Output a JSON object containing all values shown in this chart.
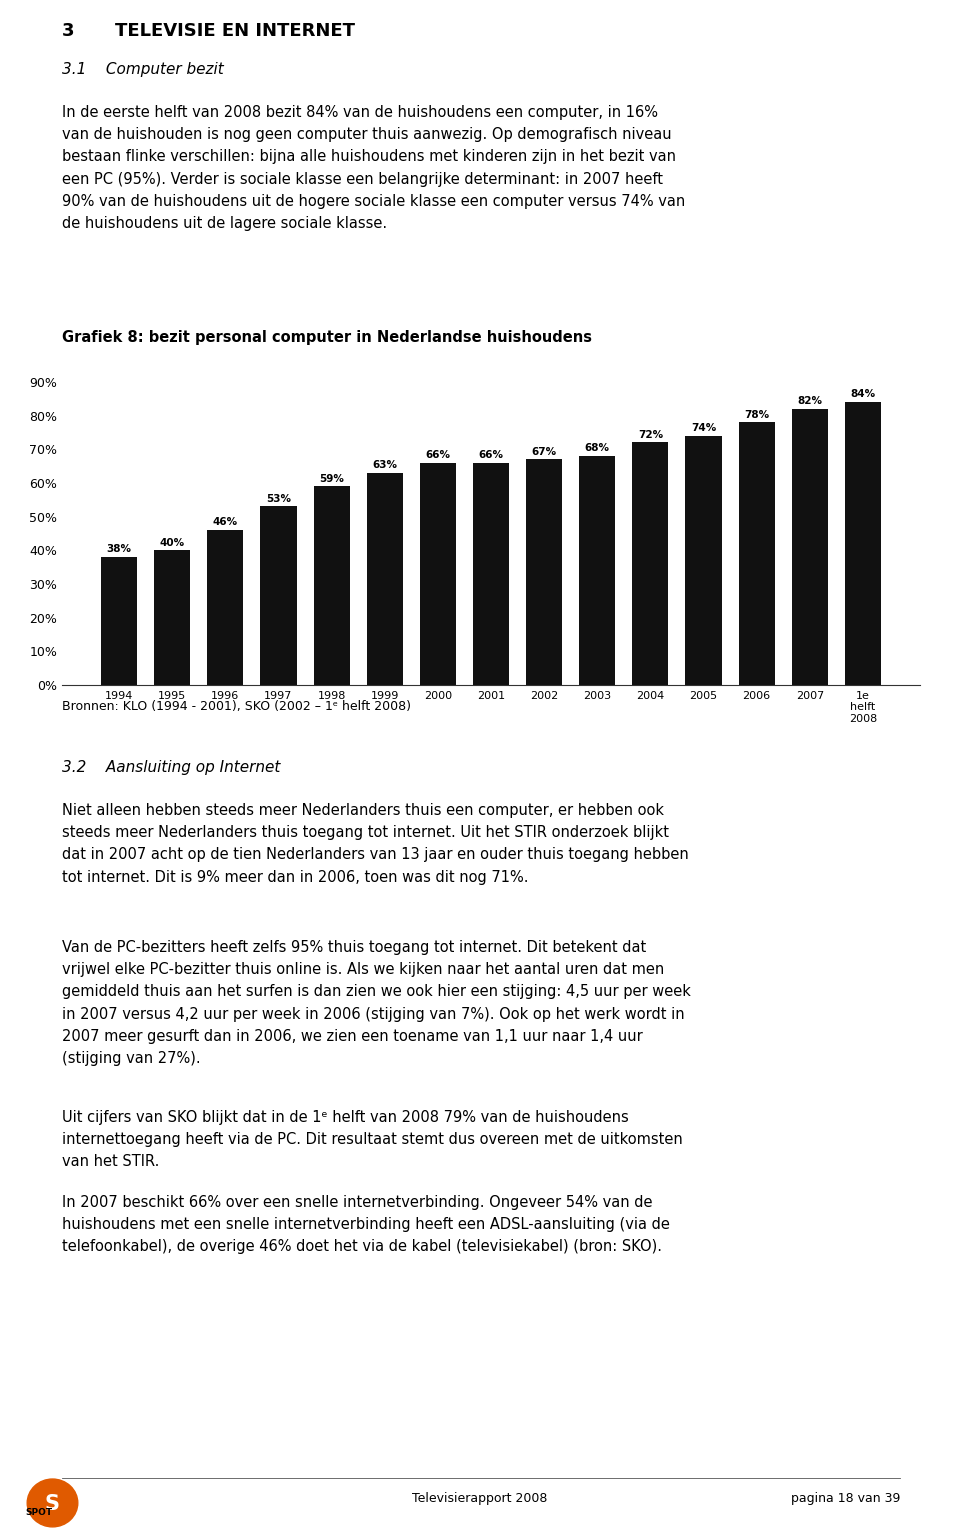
{
  "page_title_num": "3",
  "page_title_text": "TELEVISIE EN INTERNET",
  "section_title": "3.1    Computer bezit",
  "paragraph1": "In de eerste helft van 2008 bezit 84% van de huishoudens een computer, in 16%\nvan de huishouden is nog geen computer thuis aanwezig. Op demografisch niveau\nbestaan flinke verschillen: bijna alle huishoudens met kinderen zijn in het bezit van\neen PC (95%). Verder is sociale klasse een belangrijke determinant: in 2007 heeft\n90% van de huishoudens uit de hogere sociale klasse een computer versus 74% van\nde huishoudens uit de lagere sociale klasse.",
  "chart_title": "Grafiek 8: bezit personal computer in Nederlandse huishoudens",
  "source_text": "Bronnen: KLO (1994 - 2001), SKO (2002 – 1ᵉ helft 2008)",
  "section2_title": "3.2    Aansluiting op Internet",
  "paragraph2": "Niet alleen hebben steeds meer Nederlanders thuis een computer, er hebben ook\nsteeds meer Nederlanders thuis toegang tot internet. Uit het STIR onderzoek blijkt\ndat in 2007 acht op de tien Nederlanders van 13 jaar en ouder thuis toegang hebben\ntot internet. Dit is 9% meer dan in 2006, toen was dit nog 71%.",
  "paragraph3": "Van de PC-bezitters heeft zelfs 95% thuis toegang tot internet. Dit betekent dat\nvrijwel elke PC-bezitter thuis online is. Als we kijken naar het aantal uren dat men\ngemiddeld thuis aan het surfen is dan zien we ook hier een stijging: 4,5 uur per week\nin 2007 versus 4,2 uur per week in 2006 (stijging van 7%). Ook op het werk wordt in\n2007 meer gesurft dan in 2006, we zien een toename van 1,1 uur naar 1,4 uur\n(stijging van 27%).",
  "paragraph4": "Uit cijfers van SKO blijkt dat in de 1ᵉ helft van 2008 79% van de huishoudens\ninternettoegang heeft via de PC. Dit resultaat stemt dus overeen met de uitkomsten\nvan het STIR.",
  "paragraph5": "In 2007 beschikt 66% over een snelle internetverbinding. Ongeveer 54% van de\nhuishoudens met een snelle internetverbinding heeft een ADSL-aansluiting (via de\ntelefoonkabel), de overige 46% doet het via de kabel (televisiekabel) (bron: SKO).",
  "footer_center": "Televisierapport 2008",
  "footer_right": "pagina 18 van 39",
  "categories": [
    "1994",
    "1995",
    "1996",
    "1997",
    "1998",
    "1999",
    "2000",
    "2001",
    "2002",
    "2003",
    "2004",
    "2005",
    "2006",
    "2007",
    "1e\nhelft\n2008"
  ],
  "values": [
    38,
    40,
    46,
    53,
    59,
    63,
    66,
    66,
    67,
    68,
    72,
    74,
    78,
    82,
    84
  ],
  "bar_color": "#111111",
  "yticks": [
    0,
    10,
    20,
    30,
    40,
    50,
    60,
    70,
    80,
    90
  ],
  "ylim": [
    0,
    95
  ],
  "background_color": "#ffffff",
  "spot_color": "#e05a00"
}
